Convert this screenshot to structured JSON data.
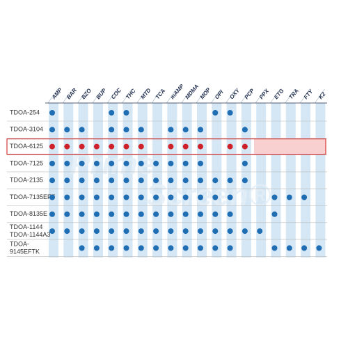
{
  "columns": [
    "AMP",
    "BAR",
    "BZO",
    "BUP",
    "COC",
    "THC",
    "MTD",
    "TCA",
    "mAMP",
    "MDMA",
    "MOP",
    "OPI",
    "OXY",
    "PCP",
    "PPX",
    "ETG",
    "TRA",
    "FTY",
    "K2"
  ],
  "watermark": [
    "Prime",
    "Screen®"
  ],
  "rows": [
    {
      "label": [
        "TDOA-254"
      ],
      "cells": [
        true,
        false,
        false,
        false,
        true,
        true,
        false,
        false,
        false,
        false,
        false,
        true,
        true,
        false,
        false,
        false,
        false,
        false,
        false
      ]
    },
    {
      "label": [
        "TDOA-3104"
      ],
      "cells": [
        true,
        true,
        true,
        false,
        true,
        true,
        true,
        false,
        true,
        true,
        true,
        false,
        false,
        true,
        false,
        false,
        false,
        false,
        false
      ]
    },
    {
      "label": [
        "TDOA-6125"
      ],
      "highlight": true,
      "cells": [
        true,
        true,
        true,
        true,
        true,
        true,
        true,
        false,
        true,
        true,
        true,
        false,
        true,
        true,
        false,
        false,
        false,
        false,
        false
      ]
    },
    {
      "label": [
        "TDOA-7125"
      ],
      "cells": [
        true,
        true,
        true,
        true,
        true,
        true,
        true,
        true,
        true,
        true,
        true,
        false,
        false,
        true,
        false,
        false,
        false,
        false,
        false
      ]
    },
    {
      "label": [
        "TDOA-2135"
      ],
      "cells": [
        true,
        true,
        true,
        true,
        true,
        true,
        true,
        true,
        true,
        true,
        true,
        true,
        true,
        true,
        false,
        false,
        false,
        false,
        false
      ]
    },
    {
      "label": [
        "TDOA-7135EFT"
      ],
      "cells": [
        true,
        true,
        true,
        true,
        true,
        true,
        true,
        true,
        true,
        true,
        true,
        true,
        true,
        false,
        false,
        true,
        true,
        true,
        false
      ]
    },
    {
      "label": [
        "TDOA-8135E"
      ],
      "cells": [
        true,
        true,
        true,
        true,
        true,
        true,
        true,
        true,
        true,
        true,
        true,
        true,
        true,
        false,
        false,
        true,
        false,
        false,
        false
      ]
    },
    {
      "label": [
        "TDOA-1144",
        "TDOA-1144A3"
      ],
      "cells": [
        true,
        true,
        true,
        true,
        true,
        true,
        true,
        true,
        true,
        true,
        true,
        true,
        true,
        true,
        true,
        false,
        false,
        false,
        false
      ]
    },
    {
      "label": [
        "TDOA-",
        "9145EFTK"
      ],
      "cells": [
        false,
        false,
        true,
        true,
        true,
        true,
        true,
        true,
        true,
        true,
        true,
        true,
        true,
        false,
        false,
        true,
        true,
        true,
        true
      ]
    }
  ]
}
